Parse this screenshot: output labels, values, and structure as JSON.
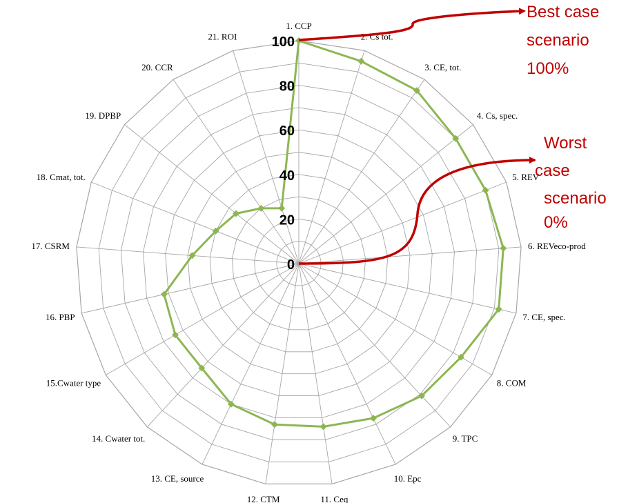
{
  "chart_data": {
    "type": "radar",
    "categories": [
      "1. CCP",
      "2. Cs tot.",
      "3. CE, tot.",
      "4. Cs, spec.",
      "5. REV",
      "6. REVeco-prod",
      "7. CE, spec.",
      "8. COM",
      "9. TPC",
      "10. Epc",
      "11. Ceq",
      "12. CTM",
      "13. CE, source",
      "14. Cwater tot.",
      "15.Cwater type",
      "16. PBP",
      "17. CSRM",
      "18. Cmat, tot.",
      "19. DPBP",
      "20. CCR",
      "21. ROI"
    ],
    "series": [
      {
        "values": [
          100,
          95,
          94,
          90,
          90,
          92,
          92,
          84,
          81,
          77,
          74,
          73,
          70,
          64,
          64,
          62,
          48,
          40,
          36,
          30,
          26
        ]
      }
    ],
    "ticks": [
      "0",
      "20",
      "40",
      "60",
      "80",
      "100"
    ],
    "tick_values": [
      0,
      20,
      40,
      60,
      80,
      100
    ],
    "rlim": [
      0,
      100
    ],
    "grid": true,
    "colors": {
      "series": "#8db653",
      "grid": "#a6a6a6",
      "annotation": "#c00000"
    }
  },
  "annotations": {
    "best": [
      "Best case",
      "scenario",
      "100%"
    ],
    "worst": [
      "Worst",
      "case",
      "scenario",
      "0%"
    ]
  }
}
